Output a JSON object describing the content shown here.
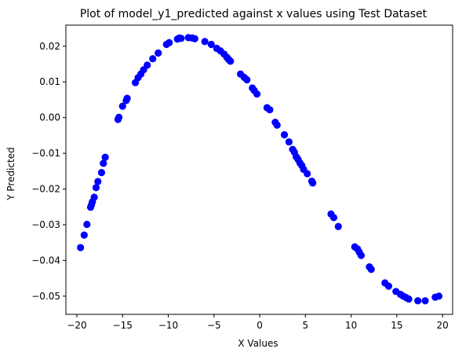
{
  "chart_data": {
    "type": "scatter",
    "title": "Plot of model_y1_predicted against x values using Test Dataset",
    "xlabel": "X Values",
    "ylabel": "Y Predicted",
    "xlim": [
      -21.2,
      21.1
    ],
    "ylim": [
      -0.0551,
      0.0259
    ],
    "xticks": [
      -20,
      -15,
      -10,
      -5,
      0,
      5,
      10,
      15,
      20
    ],
    "xtick_labels": [
      "−20",
      "−15",
      "−10",
      "−5",
      "0",
      "5",
      "10",
      "15",
      "20"
    ],
    "yticks": [
      -0.05,
      -0.04,
      -0.03,
      -0.02,
      -0.01,
      0.0,
      0.01,
      0.02
    ],
    "ytick_labels": [
      "−0.05",
      "−0.04",
      "−0.03",
      "−0.02",
      "−0.01",
      "0.00",
      "0.01",
      "0.02"
    ],
    "grid": false,
    "marker_color": "#0000ff",
    "series": [
      {
        "points": [
          [
            -19.6,
            -0.0364
          ],
          [
            -19.2,
            -0.0329
          ],
          [
            -18.9,
            -0.0299
          ],
          [
            -18.5,
            -0.0251
          ],
          [
            -18.4,
            -0.0244
          ],
          [
            -18.3,
            -0.0236
          ],
          [
            -18.1,
            -0.0223
          ],
          [
            -17.9,
            -0.0196
          ],
          [
            -17.7,
            -0.0179
          ],
          [
            -17.3,
            -0.0154
          ],
          [
            -17.1,
            -0.0128
          ],
          [
            -16.9,
            -0.0111
          ],
          [
            -15.5,
            -0.0005
          ],
          [
            -15.4,
            0.0001
          ],
          [
            -15.0,
            0.0032
          ],
          [
            -14.6,
            0.0048
          ],
          [
            -14.5,
            0.0054
          ],
          [
            -13.6,
            0.0098
          ],
          [
            -13.3,
            0.0112
          ],
          [
            -13.0,
            0.0122
          ],
          [
            -12.7,
            0.0134
          ],
          [
            -12.3,
            0.0147
          ],
          [
            -11.7,
            0.0165
          ],
          [
            -11.1,
            0.0181
          ],
          [
            -10.2,
            0.0205
          ],
          [
            -9.9,
            0.021
          ],
          [
            -9.0,
            0.022
          ],
          [
            -8.8,
            0.0223
          ],
          [
            -8.6,
            0.0222
          ],
          [
            -7.8,
            0.0224
          ],
          [
            -7.4,
            0.0223
          ],
          [
            -7.1,
            0.0221
          ],
          [
            -6.0,
            0.0213
          ],
          [
            -5.3,
            0.0205
          ],
          [
            -4.7,
            0.0194
          ],
          [
            -4.3,
            0.0187
          ],
          [
            -3.9,
            0.0178
          ],
          [
            -3.6,
            0.0169
          ],
          [
            -3.4,
            0.0163
          ],
          [
            -3.2,
            0.0158
          ],
          [
            -2.1,
            0.0122
          ],
          [
            -1.7,
            0.0113
          ],
          [
            -1.4,
            0.0106
          ],
          [
            -0.8,
            0.0083
          ],
          [
            -0.6,
            0.0076
          ],
          [
            -0.3,
            0.0066
          ],
          [
            0.8,
            0.0028
          ],
          [
            1.1,
            0.0022
          ],
          [
            1.7,
            -0.0013
          ],
          [
            1.9,
            -0.0021
          ],
          [
            2.7,
            -0.0048
          ],
          [
            3.2,
            -0.0068
          ],
          [
            3.6,
            -0.0089
          ],
          [
            3.8,
            -0.0097
          ],
          [
            4.0,
            -0.011
          ],
          [
            4.2,
            -0.0117
          ],
          [
            4.4,
            -0.0127
          ],
          [
            4.6,
            -0.0134
          ],
          [
            4.8,
            -0.0145
          ],
          [
            5.2,
            -0.0157
          ],
          [
            5.7,
            -0.0178
          ],
          [
            5.8,
            -0.0183
          ],
          [
            7.8,
            -0.027
          ],
          [
            8.1,
            -0.028
          ],
          [
            8.6,
            -0.0305
          ],
          [
            10.4,
            -0.0362
          ],
          [
            10.7,
            -0.0368
          ],
          [
            10.9,
            -0.0377
          ],
          [
            11.1,
            -0.0386
          ],
          [
            12.0,
            -0.0418
          ],
          [
            12.2,
            -0.0425
          ],
          [
            13.7,
            -0.0463
          ],
          [
            14.1,
            -0.0472
          ],
          [
            14.9,
            -0.0487
          ],
          [
            15.4,
            -0.0495
          ],
          [
            15.7,
            -0.05
          ],
          [
            16.0,
            -0.0504
          ],
          [
            16.3,
            -0.0508
          ],
          [
            17.3,
            -0.0513
          ],
          [
            18.1,
            -0.0513
          ],
          [
            19.2,
            -0.0503
          ],
          [
            19.6,
            -0.05
          ]
        ]
      }
    ]
  }
}
